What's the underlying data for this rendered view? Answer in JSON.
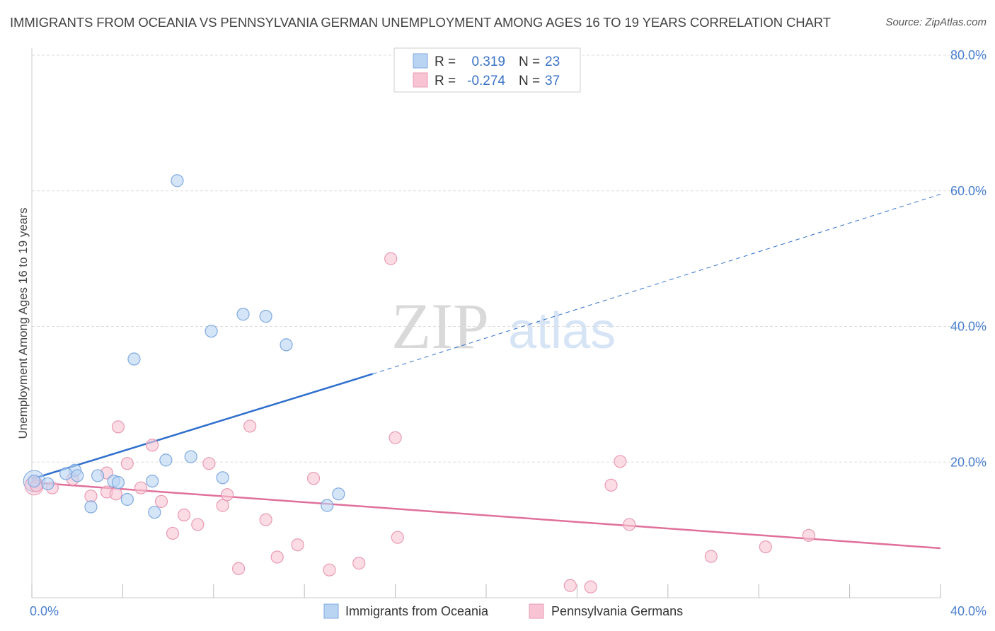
{
  "title": "IMMIGRANTS FROM OCEANIA VS PENNSYLVANIA GERMAN UNEMPLOYMENT AMONG AGES 16 TO 19 YEARS CORRELATION CHART",
  "source": "Source: ZipAtlas.com",
  "watermark": {
    "zip": "ZIP",
    "atlas": "atlas"
  },
  "colors": {
    "blue_fill": "#b9d3f3",
    "blue_stroke": "#7fa9df",
    "blue_line": "#2f6fcc",
    "pink_fill": "#f8c4d4",
    "pink_stroke": "#e99ab3",
    "pink_line": "#e0709a",
    "tick_color": "#4a7fcf",
    "grid": "#dddddd"
  },
  "legend": {
    "rows": [
      {
        "r_label": "R =",
        "r_value": "0.319",
        "n_label": "N =",
        "n_value": "23"
      },
      {
        "r_label": "R =",
        "r_value": "-0.274",
        "n_label": "N =",
        "n_value": "37"
      }
    ]
  },
  "chart_data": {
    "type": "scatter",
    "title": "IMMIGRANTS FROM OCEANIA VS PENNSYLVANIA GERMAN UNEMPLOYMENT AMONG AGES 16 TO 19 YEARS CORRELATION CHART",
    "xlabel": "",
    "ylabel": "Unemployment Among Ages 16 to 19 years",
    "xlim": [
      0,
      40
    ],
    "ylim": [
      0,
      80
    ],
    "x_tick_labels": [
      "0.0%",
      "40.0%"
    ],
    "y_tick_labels": [
      "20.0%",
      "40.0%",
      "60.0%",
      "80.0%"
    ],
    "y_tick_values": [
      20,
      40,
      60,
      80
    ],
    "grid": true,
    "legend_position": "top-center",
    "series": [
      {
        "name": "Immigrants from Oceania",
        "color": "#b9d3f3",
        "points": [
          [
            0.1,
            17.2
          ],
          [
            0.7,
            16.8
          ],
          [
            1.9,
            18.8
          ],
          [
            1.5,
            18.3
          ],
          [
            2.0,
            18.0
          ],
          [
            2.6,
            13.4
          ],
          [
            2.9,
            18.0
          ],
          [
            3.6,
            17.2
          ],
          [
            3.8,
            17.0
          ],
          [
            4.2,
            14.5
          ],
          [
            5.3,
            17.2
          ],
          [
            4.5,
            35.2
          ],
          [
            5.4,
            12.6
          ],
          [
            5.9,
            20.3
          ],
          [
            6.4,
            61.5
          ],
          [
            7.0,
            20.8
          ],
          [
            7.9,
            39.3
          ],
          [
            8.4,
            17.7
          ],
          [
            9.3,
            41.8
          ],
          [
            10.3,
            41.5
          ],
          [
            11.2,
            37.3
          ],
          [
            13.0,
            13.6
          ],
          [
            13.5,
            15.3
          ]
        ],
        "trend": {
          "x": [
            0,
            15
          ],
          "y": [
            17.5,
            33.0
          ],
          "extended_to": [
            40,
            59.5
          ]
        }
      },
      {
        "name": "Pennsylvania Germans",
        "color": "#f8c4d4",
        "points": [
          [
            0.2,
            16.5
          ],
          [
            0.9,
            16.2
          ],
          [
            1.8,
            17.5
          ],
          [
            2.6,
            15.0
          ],
          [
            3.3,
            18.4
          ],
          [
            3.3,
            15.6
          ],
          [
            3.7,
            15.3
          ],
          [
            3.8,
            25.2
          ],
          [
            4.2,
            19.8
          ],
          [
            4.8,
            16.2
          ],
          [
            5.3,
            22.5
          ],
          [
            5.7,
            14.2
          ],
          [
            6.2,
            9.5
          ],
          [
            6.7,
            12.2
          ],
          [
            7.3,
            10.8
          ],
          [
            7.8,
            19.8
          ],
          [
            8.4,
            13.6
          ],
          [
            8.6,
            15.2
          ],
          [
            9.1,
            4.3
          ],
          [
            9.6,
            25.3
          ],
          [
            10.3,
            11.5
          ],
          [
            10.8,
            6.0
          ],
          [
            11.7,
            7.8
          ],
          [
            12.4,
            17.6
          ],
          [
            13.1,
            4.1
          ],
          [
            14.4,
            5.1
          ],
          [
            15.8,
            50.0
          ],
          [
            16.0,
            23.6
          ],
          [
            16.1,
            8.9
          ],
          [
            23.7,
            1.8
          ],
          [
            24.6,
            1.6
          ],
          [
            25.5,
            16.6
          ],
          [
            25.9,
            20.1
          ],
          [
            26.3,
            10.8
          ],
          [
            29.9,
            6.1
          ],
          [
            32.3,
            7.5
          ],
          [
            34.2,
            9.2
          ]
        ],
        "trend": {
          "x": [
            0,
            40
          ],
          "y": [
            17.0,
            7.3
          ]
        }
      }
    ]
  }
}
